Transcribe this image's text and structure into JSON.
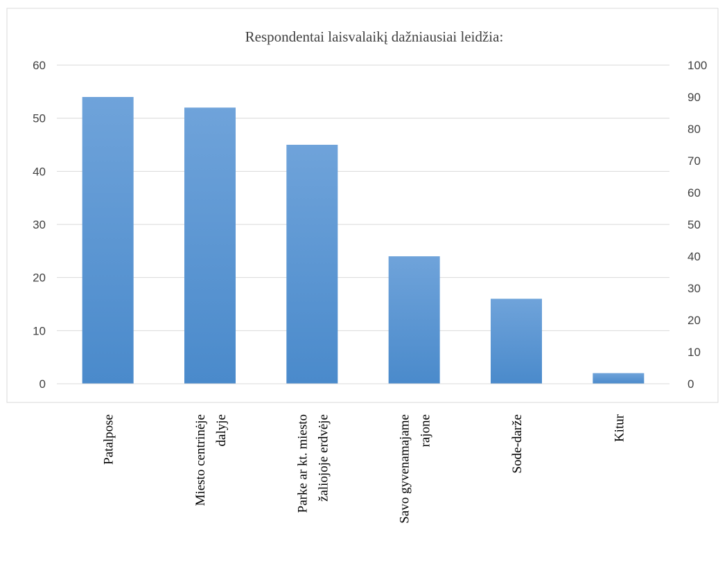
{
  "chart_data": {
    "type": "bar",
    "title": "Respondentai laisvalaikį dažniausiai leidžia:",
    "categories": [
      [
        "Patalpose"
      ],
      [
        "Miesto centrinėje",
        "dalyje"
      ],
      [
        "Parke ar kt. miesto",
        "žaliojoje erdvėje"
      ],
      [
        "Savo gyvenamajame",
        "rajone"
      ],
      [
        "Sode-darže"
      ],
      [
        "Kitur"
      ]
    ],
    "values": [
      54,
      52,
      45,
      24,
      16,
      2
    ],
    "ylim": [
      0,
      60
    ],
    "y_ticks": [
      0,
      10,
      20,
      30,
      40,
      50,
      60
    ],
    "y2lim": [
      0,
      100
    ],
    "y2_ticks": [
      0,
      10,
      20,
      30,
      40,
      50,
      60,
      70,
      80,
      90,
      100
    ],
    "grid": true,
    "colors": {
      "bar_top": "#6fa3da",
      "bar_bottom": "#4a8acb",
      "grid": "#d9d9d9",
      "border": "#d9d9d9",
      "axis": "#d9d9d9"
    }
  }
}
